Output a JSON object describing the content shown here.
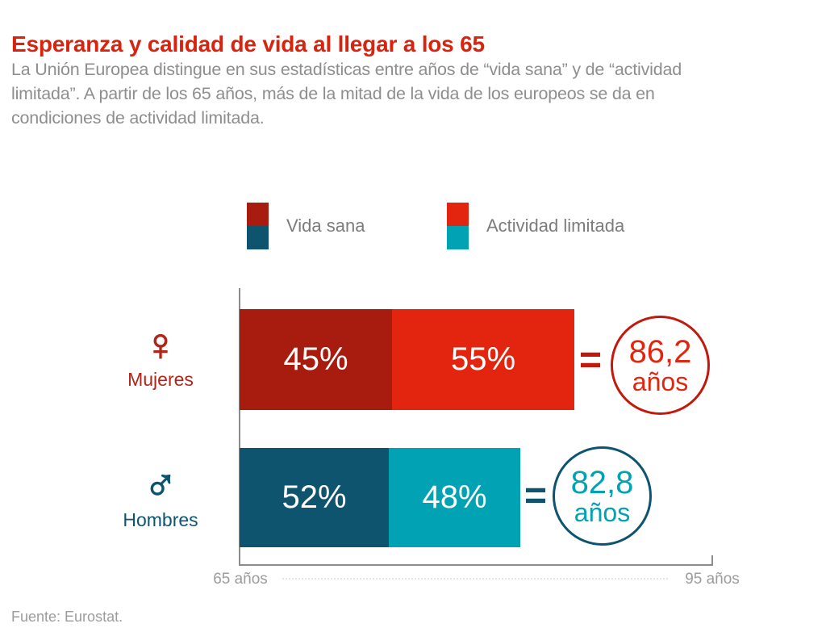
{
  "page": {
    "title": "Esperanza y calidad de vida al llegar a los 65",
    "subtitle_lines": [
      "La Unión Europea distingue en sus estadísticas entre años de “vida sana” y de “actividad",
      "limitada”. A partir de los 65 años, más de la mitad de la vida de los europeos se da en",
      "condiciones de actividad limitada."
    ],
    "source": "Fuente: Eurostat."
  },
  "colors": {
    "title": "#d8230f",
    "healthy_female": "#a81c10",
    "limited_female": "#e3250f",
    "healthy_male": "#0e546f",
    "limited_male": "#00a2b3",
    "female_label": "#b0261a",
    "male_label": "#0e546f",
    "female_ring": "#c2190c",
    "male_ring": "#0e546f",
    "subtitle_gray": "#8e8e8e",
    "legend_gray": "#7c7c7c",
    "axis_gray": "#9c9c9c"
  },
  "legend": {
    "items": [
      {
        "label": "Vida sana"
      },
      {
        "label": "Actividad limitada"
      }
    ]
  },
  "chart_data": {
    "type": "bar",
    "orientation": "horizontal",
    "stacked": true,
    "title": "Esperanza y calidad de vida al llegar a los 65",
    "categories": [
      "Mujeres",
      "Hombres"
    ],
    "series": [
      {
        "name": "Vida sana",
        "values_pct": [
          45,
          52
        ]
      },
      {
        "name": "Actividad limitada",
        "values_pct": [
          55,
          48
        ]
      }
    ],
    "totals_years": [
      86.2,
      82.8
    ],
    "x_axis": {
      "min_years": 65,
      "max_years": 95,
      "tick_labels": [
        "65 años",
        "95 años"
      ]
    },
    "legend_position": "top",
    "grid": false,
    "source": "Fuente: Eurostat."
  },
  "rows": [
    {
      "category": "Mujeres",
      "icon": "♀",
      "healthy_pct": "45%",
      "limited_pct": "55%",
      "equals": "=",
      "total_value": "86,2",
      "total_unit": "años"
    },
    {
      "category": "Hombres",
      "icon": "♂",
      "healthy_pct": "52%",
      "limited_pct": "48%",
      "equals": "=",
      "total_value": "82,8",
      "total_unit": "años"
    }
  ],
  "axis": {
    "start_label": "65 años",
    "end_label": "95 años"
  }
}
